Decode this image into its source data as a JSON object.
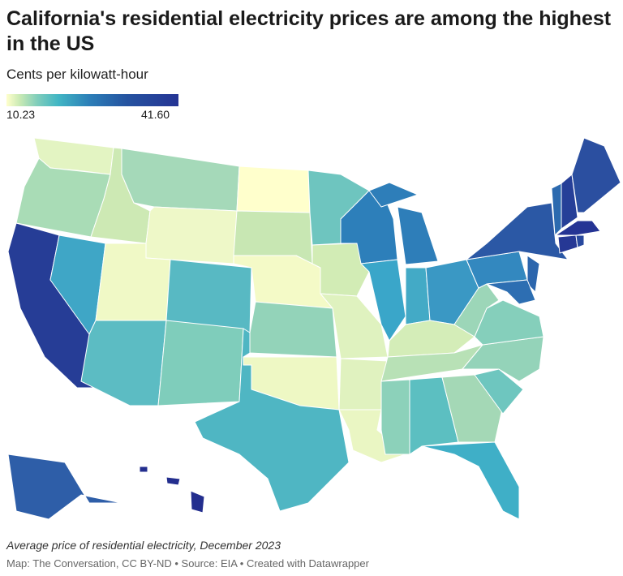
{
  "header": {
    "title": "California's residential electricity prices are among the highest in the US",
    "subtitle": "Cents per kilowatt-hour"
  },
  "legend": {
    "min_label": "10.23",
    "max_label": "41.60",
    "min_color": "#ffffcc",
    "max_color": "#253494"
  },
  "map": {
    "type": "choropleth",
    "region": "United States",
    "state_fills": {
      "WA": "#e3f4c2",
      "OR": "#a9dcb6",
      "CA": "#263d96",
      "NV": "#3fa6c6",
      "ID": "#cde9b4",
      "MT": "#a5d9b9",
      "WY": "#eef8c8",
      "UT": "#f0f9c6",
      "AZ": "#5cbcc3",
      "CO": "#58b9c3",
      "NM": "#7fcdbb",
      "ND": "#ffffcc",
      "SD": "#c8e7b3",
      "NE": "#f4fac7",
      "KS": "#93d3b9",
      "OK": "#eef8c4",
      "TX": "#4fb6c3",
      "MN": "#6ec5bf",
      "IA": "#d2ecb5",
      "MO": "#dff2bf",
      "AR": "#e0f2bf",
      "LA": "#eaf6c3",
      "WI": "#2d7fba",
      "IL": "#3aa6c9",
      "MI": "#2e7eb9",
      "IN": "#43aac6",
      "OH": "#3a98c4",
      "KY": "#d4edb8",
      "TN": "#b8e1b6",
      "MS": "#8cd1ba",
      "AL": "#5cbfc1",
      "GA": "#a4d8b6",
      "FL": "#3fafc7",
      "SC": "#6ec6bf",
      "NC": "#94d3b9",
      "VA": "#85cfbb",
      "WV": "#9cd6b8",
      "PA": "#3388bf",
      "NY": "#2b58a5",
      "NJ": "#2c66ad",
      "MD": "#2d6eb2",
      "VT": "#2c6aaf",
      "NH": "#263f98",
      "ME": "#2b4fa0",
      "MA": "#253494",
      "CT": "#263895",
      "RI": "#28489e",
      "AK": "#2e5ea8",
      "HI": "#232e8e"
    }
  },
  "footer": {
    "notes": "Average price of residential electricity, December 2023",
    "byline": "Map: The Conversation, CC BY-ND • Source: EIA • Created with Datawrapper"
  }
}
